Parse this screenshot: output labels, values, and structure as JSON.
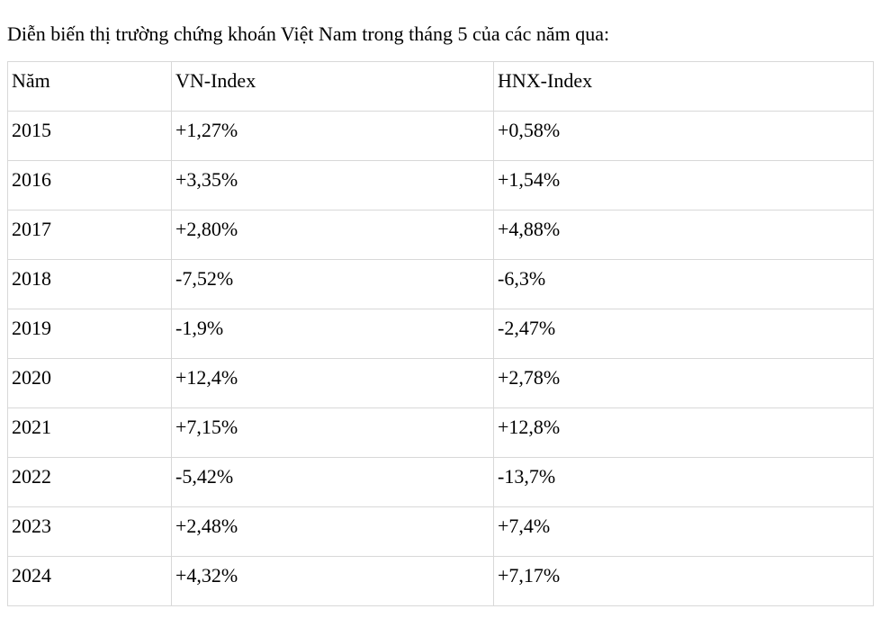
{
  "page": {
    "title": "Diễn biến thị trường chứng khoán Việt Nam trong tháng 5 của các năm qua:"
  },
  "table": {
    "headers": [
      "Năm",
      "VN-Index",
      "HNX-Index"
    ],
    "rows": [
      {
        "year": "2015",
        "vn_index": "+1,27%",
        "hnx_index": "+0,58%"
      },
      {
        "year": "2016",
        "vn_index": "+3,35%",
        "hnx_index": "+1,54%"
      },
      {
        "year": "2017",
        "vn_index": "+2,80%",
        "hnx_index": "+4,88%"
      },
      {
        "year": "2018",
        "vn_index": "-7,52%",
        "hnx_index": "-6,3%"
      },
      {
        "year": "2019",
        "vn_index": "-1,9%",
        "hnx_index": "-2,47%"
      },
      {
        "year": "2020",
        "vn_index": "+12,4%",
        "hnx_index": "+2,78%"
      },
      {
        "year": "2021",
        "vn_index": "+7,15%",
        "hnx_index": "+12,8%"
      },
      {
        "year": "2022",
        "vn_index": "-5,42%",
        "hnx_index": "-13,7%"
      },
      {
        "year": "2023",
        "vn_index": "+2,48%",
        "hnx_index": "+7,4%"
      },
      {
        "year": "2024",
        "vn_index": "+4,32%",
        "hnx_index": "+7,17%"
      }
    ]
  },
  "colors": {
    "border": "#d8d8d8",
    "text": "#000000",
    "background": "#ffffff"
  }
}
